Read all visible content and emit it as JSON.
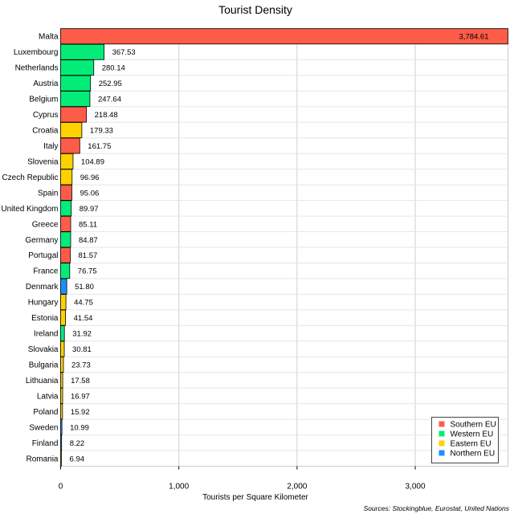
{
  "chart_data": {
    "type": "bar",
    "orientation": "horizontal",
    "title": "Tourist Density",
    "xlabel": "Tourists per Square Kilometer",
    "ylabel": "",
    "xlim": [
      0,
      3784.61
    ],
    "xticks": [
      0,
      1000,
      2000,
      3000
    ],
    "xtick_labels": [
      "0",
      "1,000",
      "2,000",
      "3,000"
    ],
    "grid": true,
    "legend_position": "bottom-right",
    "source": "Sources: Stockingblue, Eurostat, United Nations",
    "groups": [
      {
        "name": "Southern EU",
        "color": "#fd5d48"
      },
      {
        "name": "Western EU",
        "color": "#03ec78"
      },
      {
        "name": "Eastern EU",
        "color": "#fed200"
      },
      {
        "name": "Northern EU",
        "color": "#1e8ff7"
      }
    ],
    "categories": [
      "Malta",
      "Luxembourg",
      "Netherlands",
      "Austria",
      "Belgium",
      "Cyprus",
      "Croatia",
      "Italy",
      "Slovenia",
      "Czech Republic",
      "Spain",
      "United Kingdom",
      "Greece",
      "Germany",
      "Portugal",
      "France",
      "Denmark",
      "Hungary",
      "Estonia",
      "Ireland",
      "Slovakia",
      "Bulgaria",
      "Lithuania",
      "Latvia",
      "Poland",
      "Sweden",
      "Finland",
      "Romania"
    ],
    "values": [
      3784.61,
      367.53,
      280.14,
      252.95,
      247.64,
      218.48,
      179.33,
      161.75,
      104.89,
      96.96,
      95.06,
      89.97,
      85.11,
      84.87,
      81.57,
      76.75,
      51.8,
      44.75,
      41.54,
      31.92,
      30.81,
      23.73,
      17.58,
      16.97,
      15.92,
      10.99,
      8.22,
      6.94
    ],
    "value_labels": [
      "3,784.61",
      "367.53",
      "280.14",
      "252.95",
      "247.64",
      "218.48",
      "179.33",
      "161.75",
      "104.89",
      "96.96",
      "95.06",
      "89.97",
      "85.11",
      "84.87",
      "81.57",
      "76.75",
      "51.80",
      "44.75",
      "41.54",
      "31.92",
      "30.81",
      "23.73",
      "17.58",
      "16.97",
      "15.92",
      "10.99",
      "8.22",
      "6.94"
    ],
    "group_of": [
      "Southern EU",
      "Western EU",
      "Western EU",
      "Western EU",
      "Western EU",
      "Southern EU",
      "Eastern EU",
      "Southern EU",
      "Eastern EU",
      "Eastern EU",
      "Southern EU",
      "Western EU",
      "Southern EU",
      "Western EU",
      "Southern EU",
      "Western EU",
      "Northern EU",
      "Eastern EU",
      "Eastern EU",
      "Western EU",
      "Eastern EU",
      "Eastern EU",
      "Eastern EU",
      "Eastern EU",
      "Eastern EU",
      "Northern EU",
      "Northern EU",
      "Eastern EU"
    ]
  }
}
